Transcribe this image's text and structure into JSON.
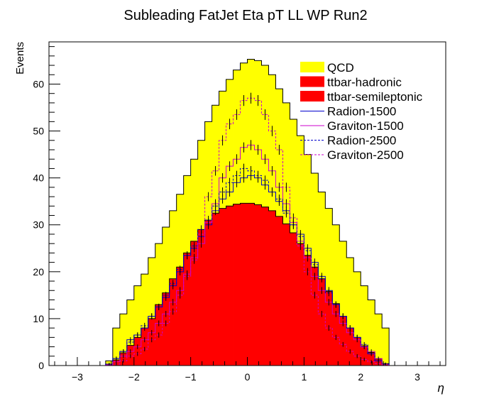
{
  "colors": {
    "QCD": "#ffff00",
    "ttbar-hadronic": "#ff0000",
    "ttbar-semileptonic": "#ff0000",
    "Radion-1500": "#0000cc",
    "Graviton-1500": "#cc00cc",
    "Radion-2500": "#0000cc",
    "Graviton-2500": "#cc00cc"
  },
  "chart_data": {
    "type": "area",
    "title": "Subleading FatJet Eta pT LL WP Run2",
    "xlabel": "η",
    "ylabel": "Events",
    "xlim": [
      -3.5,
      3.5
    ],
    "ylim": [
      0,
      69
    ],
    "grid": false,
    "legend_position": "top-right",
    "x_ticks": [
      "−3",
      "−2",
      "−1",
      "0",
      "1",
      "2",
      "3"
    ],
    "y_ticks": [
      "0",
      "10",
      "20",
      "30",
      "40",
      "50",
      "60"
    ],
    "bin_edges": [
      -2.5,
      -2.375,
      -2.25,
      -2.125,
      -2.0,
      -1.875,
      -1.75,
      -1.625,
      -1.5,
      -1.375,
      -1.25,
      -1.125,
      -1.0,
      -0.875,
      -0.75,
      -0.625,
      -0.5,
      -0.375,
      -0.25,
      -0.125,
      0.0,
      0.125,
      0.25,
      0.375,
      0.5,
      0.625,
      0.75,
      0.875,
      1.0,
      1.125,
      1.25,
      1.375,
      1.5,
      1.625,
      1.75,
      1.875,
      2.0,
      2.125,
      2.25,
      2.375,
      2.5
    ],
    "series": [
      {
        "name": "QCD",
        "style": "stack-fill",
        "values": [
          1.0,
          8.0,
          11.0,
          14.0,
          17.0,
          19.5,
          23.0,
          26.0,
          29.5,
          33.0,
          36.5,
          40.5,
          44.0,
          48.0,
          52.0,
          55.5,
          58.5,
          61.0,
          63.0,
          64.5,
          65.3,
          65.0,
          64.0,
          62.0,
          59.0,
          56.0,
          52.5,
          49.0,
          45.0,
          41.0,
          37.0,
          33.5,
          30.0,
          26.5,
          23.0,
          20.0,
          17.0,
          14.0,
          11.0,
          8.0
        ]
      },
      {
        "name": "ttbar-hadronic",
        "style": "stack-fill",
        "values": [
          0.3,
          1.2,
          2.7,
          4.3,
          6.0,
          8.0,
          10.0,
          13.0,
          15.5,
          18.5,
          21.0,
          24.0,
          26.5,
          29.0,
          31.0,
          32.5,
          33.5,
          34.0,
          34.4,
          34.6,
          34.6,
          34.3,
          33.8,
          33.0,
          31.8,
          30.2,
          28.3,
          26.0,
          23.5,
          21.0,
          18.5,
          15.8,
          13.2,
          10.5,
          8.0,
          6.0,
          4.2,
          2.8,
          1.4,
          0.4
        ]
      },
      {
        "name": "ttbar-semileptonic",
        "style": "stack-fill",
        "values": []
      },
      {
        "name": "Radion-1500",
        "style": "solid",
        "values": [
          0.3,
          1.5,
          3.0,
          5.5,
          6.5,
          8.0,
          10.5,
          12.5,
          14.5,
          17.0,
          20.0,
          23.5,
          25.0,
          27.5,
          30.0,
          33.0,
          35.5,
          37.0,
          39.0,
          40.0,
          40.5,
          40.0,
          38.5,
          37.0,
          35.0,
          33.0,
          30.0,
          28.0,
          25.0,
          22.0,
          19.0,
          16.0,
          13.0,
          10.5,
          8.0,
          6.0,
          4.0,
          2.5,
          1.0,
          0.3
        ]
      },
      {
        "name": "Graviton-1500",
        "style": "solid",
        "values": [
          0.1,
          0.8,
          2.0,
          3.0,
          4.0,
          5.5,
          7.0,
          9.0,
          11.0,
          13.5,
          16.0,
          19.5,
          23.0,
          26.0,
          30.5,
          34.5,
          40.0,
          42.5,
          44.0,
          46.5,
          47.0,
          46.0,
          44.0,
          41.5,
          38.0,
          34.5,
          30.5,
          26.5,
          23.0,
          19.0,
          16.0,
          13.5,
          11.0,
          9.0,
          7.0,
          5.5,
          4.0,
          3.0,
          1.5,
          0.3
        ]
      },
      {
        "name": "Radion-2500",
        "style": "dashed",
        "values": [
          0.3,
          1.5,
          3.0,
          5.0,
          6.5,
          8.5,
          10.5,
          12.5,
          15.0,
          17.5,
          20.5,
          23.5,
          25.5,
          29.0,
          31.0,
          34.0,
          37.0,
          39.0,
          40.5,
          42.0,
          41.5,
          40.5,
          39.5,
          37.0,
          35.5,
          32.5,
          30.0,
          27.5,
          24.5,
          21.5,
          18.5,
          15.5,
          13.0,
          10.5,
          8.0,
          6.0,
          4.5,
          2.5,
          1.0,
          0.3
        ]
      },
      {
        "name": "Graviton-2500",
        "style": "dashed",
        "values": [
          0.1,
          0.3,
          1.0,
          2.0,
          2.5,
          3.5,
          5.5,
          6.5,
          9.0,
          11.5,
          15.0,
          19.0,
          22.5,
          28.0,
          36.0,
          41.5,
          48.0,
          51.5,
          53.5,
          56.5,
          57.0,
          56.5,
          53.5,
          50.0,
          46.0,
          38.0,
          31.5,
          25.5,
          20.0,
          15.0,
          11.0,
          8.0,
          6.0,
          4.5,
          3.0,
          2.0,
          1.3,
          0.8,
          0.4,
          0.1
        ]
      }
    ]
  }
}
